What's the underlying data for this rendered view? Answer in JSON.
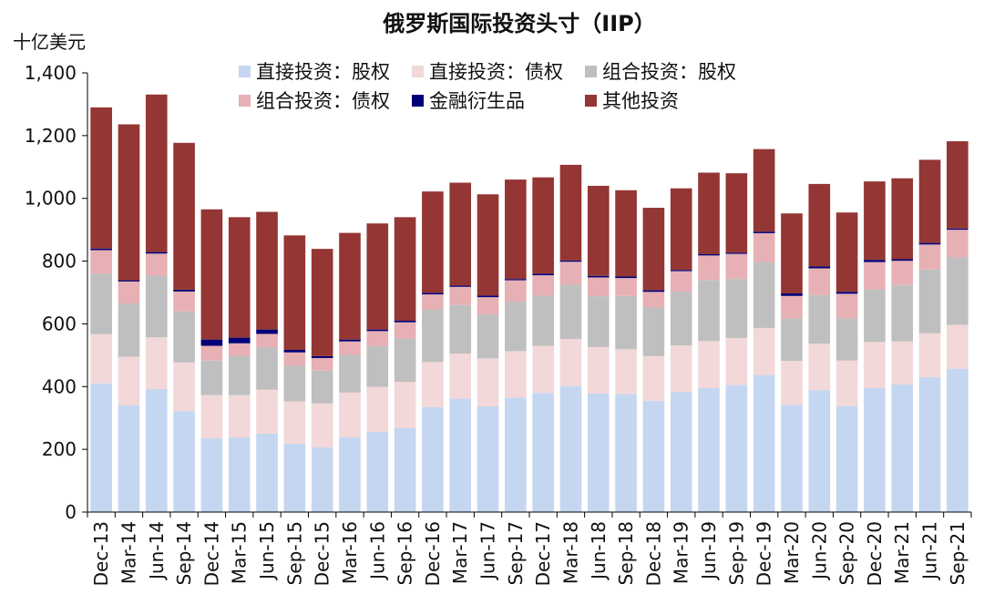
{
  "chart_data": {
    "type": "bar",
    "stacked": true,
    "title": "俄罗斯国际投资头寸（IIP）",
    "ylabel": "十亿美元",
    "ylim": [
      0,
      1400
    ],
    "yticks": [
      "0",
      "200",
      "400",
      "600",
      "800",
      "1,000",
      "1,200",
      "1,400"
    ],
    "ytick_values": [
      0,
      200,
      400,
      600,
      800,
      1000,
      1200,
      1400
    ],
    "grid": false,
    "legend_position": "top",
    "categories": [
      "Dec-13",
      "Mar-14",
      "Jun-14",
      "Sep-14",
      "Dec-14",
      "Mar-15",
      "Jun-15",
      "Sep-15",
      "Dec-15",
      "Mar-16",
      "Jun-16",
      "Sep-16",
      "Dec-16",
      "Mar-17",
      "Jun-17",
      "Sep-17",
      "Dec-17",
      "Mar-18",
      "Jun-18",
      "Sep-18",
      "Dec-18",
      "Mar-19",
      "Jun-19",
      "Sep-19",
      "Dec-19",
      "Mar-20",
      "Jun-20",
      "Sep-20",
      "Dec-20",
      "Mar-21",
      "Jun-21",
      "Sep-21"
    ],
    "series": [
      {
        "name": "直接投资：股权",
        "color": "#c5d6f0",
        "values": [
          410,
          340,
          392,
          322,
          235,
          238,
          250,
          218,
          206,
          238,
          256,
          268,
          335,
          362,
          337,
          365,
          380,
          402,
          378,
          377,
          355,
          383,
          395,
          405,
          437,
          342,
          389,
          338,
          395,
          407,
          430,
          457
        ]
      },
      {
        "name": "直接投资：债权",
        "color": "#f2d8d8",
        "values": [
          157,
          155,
          165,
          155,
          138,
          135,
          140,
          135,
          140,
          143,
          143,
          147,
          143,
          143,
          153,
          148,
          150,
          150,
          148,
          142,
          142,
          148,
          150,
          150,
          150,
          140,
          148,
          145,
          147,
          137,
          140,
          140
        ]
      },
      {
        "name": "组合投资：股权",
        "color": "#bfbfbf",
        "values": [
          193,
          170,
          197,
          163,
          110,
          125,
          135,
          113,
          105,
          120,
          130,
          138,
          168,
          155,
          140,
          158,
          160,
          173,
          162,
          170,
          155,
          172,
          195,
          188,
          210,
          135,
          155,
          135,
          168,
          180,
          203,
          215
        ]
      },
      {
        "name": "组合投资：债权",
        "color": "#e6b0b4",
        "values": [
          75,
          70,
          70,
          63,
          47,
          40,
          43,
          43,
          40,
          43,
          48,
          52,
          48,
          58,
          55,
          68,
          65,
          73,
          60,
          57,
          50,
          65,
          78,
          80,
          92,
          72,
          85,
          78,
          87,
          77,
          80,
          88
        ]
      },
      {
        "name": "金融衍生品",
        "color": "#000078",
        "values": [
          5,
          4,
          5,
          6,
          20,
          18,
          14,
          8,
          6,
          6,
          5,
          5,
          5,
          4,
          5,
          4,
          5,
          4,
          5,
          5,
          5,
          4,
          4,
          4,
          5,
          8,
          6,
          6,
          7,
          5,
          5,
          4
        ]
      },
      {
        "name": "其他投资",
        "color": "#943634",
        "values": [
          450,
          497,
          502,
          468,
          415,
          384,
          375,
          365,
          342,
          340,
          338,
          330,
          323,
          328,
          323,
          317,
          307,
          305,
          287,
          275,
          263,
          260,
          260,
          253,
          263,
          255,
          263,
          253,
          250,
          258,
          265,
          278
        ]
      }
    ]
  }
}
